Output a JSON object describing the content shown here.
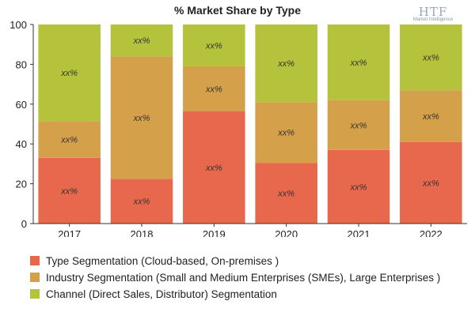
{
  "chart_data": {
    "type": "bar",
    "stacked": true,
    "title": "% Market Share by Type",
    "categories": [
      "2017",
      "2018",
      "2019",
      "2020",
      "2021",
      "2022"
    ],
    "ylim": [
      0,
      100
    ],
    "yticks": [
      0,
      20,
      40,
      60,
      80,
      100
    ],
    "grid": false,
    "series": [
      {
        "name": "Type Segmentation (Cloud-based, On-premises )",
        "color": "#e8684e",
        "values": [
          33,
          22.5,
          56.5,
          30.5,
          37,
          41
        ],
        "labels": [
          "xx%",
          "xx%",
          "xx%",
          "xx%",
          "xx%",
          "xx%"
        ]
      },
      {
        "name": "Industry Segmentation (Small and Medium Enterprises (SMEs), Large Enterprises )",
        "color": "#d4a04a",
        "values": [
          18.5,
          61.5,
          22.5,
          30.5,
          25,
          26
        ],
        "labels": [
          "xx%",
          "xx%",
          "xx%",
          "xx%",
          "xx%",
          "xx%"
        ]
      },
      {
        "name": "Channel (Direct Sales, Distributor) Segmentation",
        "color": "#b5c33c",
        "values": [
          48.5,
          16,
          21,
          39,
          38,
          33
        ],
        "labels": [
          "xx%",
          "xx%",
          "xx%",
          "xx%",
          "xx%",
          "xx%"
        ]
      }
    ]
  },
  "logo": {
    "main": "HTF",
    "sub": "Market Intelligence"
  }
}
